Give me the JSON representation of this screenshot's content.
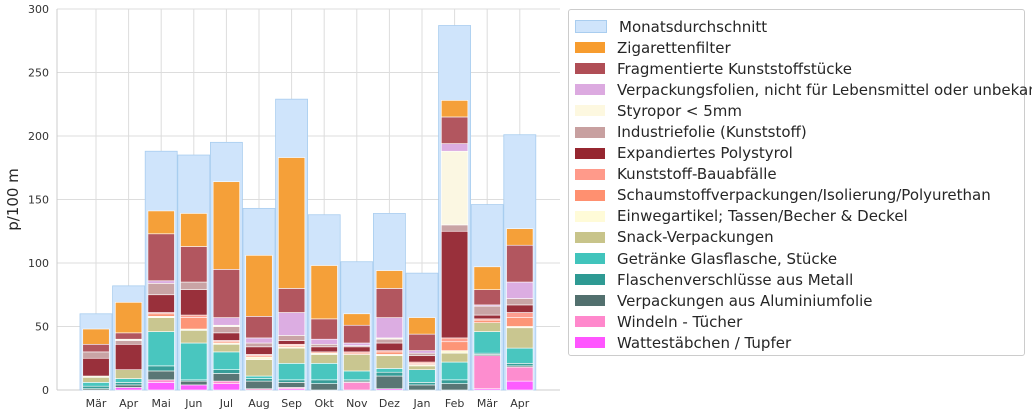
{
  "chart_data": {
    "type": "bar",
    "stacked": true,
    "ylabel": "p/100 m",
    "xlabel": "",
    "ylim": [
      0,
      300
    ],
    "yticks": [
      0,
      50,
      100,
      150,
      200,
      250,
      300
    ],
    "grid": true,
    "legend_position": "right",
    "categories": [
      "Mär",
      "Apr",
      "Mai",
      "Jun",
      "Jul",
      "Aug",
      "Sep",
      "Okt",
      "Nov",
      "Dez",
      "Jan",
      "Feb",
      "Mär",
      "Apr"
    ],
    "background_series": {
      "name": "Monatsdurchschnitt",
      "color": "#cfe4fb",
      "values": [
        60,
        82,
        188,
        185,
        195,
        143,
        229,
        138,
        101,
        139,
        92,
        287,
        146,
        201
      ]
    },
    "series": [
      {
        "name": "Wattestäbchen / Tupfer",
        "color": "#ff55ff",
        "values": [
          0,
          2,
          6,
          4,
          5,
          0,
          1,
          0,
          0,
          1,
          0,
          0,
          1,
          7
        ]
      },
      {
        "name": "Windeln - Tücher",
        "color": "#ff88cc",
        "values": [
          0,
          0,
          2,
          0,
          2,
          1,
          1,
          0,
          6,
          0,
          0,
          0,
          26,
          11
        ]
      },
      {
        "name": "Verpackungen aus Aluminiumfolie",
        "color": "#52706e",
        "values": [
          1,
          2,
          7,
          3,
          6,
          6,
          4,
          5,
          1,
          10,
          4,
          5,
          1,
          1
        ]
      },
      {
        "name": "Flaschenverschlüsse aus Metall",
        "color": "#2e9a93",
        "values": [
          2,
          2,
          4,
          1,
          3,
          2,
          2,
          3,
          1,
          3,
          2,
          3,
          1,
          2
        ]
      },
      {
        "name": "Getränke Glasflasche, Stücke",
        "color": "#41c4bc",
        "values": [
          3,
          3,
          27,
          29,
          14,
          2,
          13,
          13,
          7,
          3,
          10,
          14,
          17,
          12
        ]
      },
      {
        "name": "Snack-Verpackungen",
        "color": "#c8c48a",
        "values": [
          4,
          7,
          11,
          10,
          6,
          13,
          12,
          7,
          13,
          10,
          3,
          7,
          7,
          16
        ]
      },
      {
        "name": "Einwegartikel; Tassen/Becher & Deckel",
        "color": "#fffbd8",
        "values": [
          1,
          0,
          1,
          1,
          1,
          2,
          1,
          1,
          0,
          1,
          1,
          2,
          0,
          1
        ]
      },
      {
        "name": "Schaumstoffverpackungen/Isolierung/Polyurethan",
        "color": "#ff9070",
        "values": [
          0,
          0,
          2,
          9,
          1,
          1,
          1,
          1,
          1,
          2,
          1,
          7,
          2,
          7
        ]
      },
      {
        "name": "Kunststoff-Bauabfälle",
        "color": "#ff9a8a",
        "values": [
          0,
          0,
          1,
          2,
          1,
          1,
          1,
          0,
          1,
          1,
          1,
          3,
          1,
          4
        ]
      },
      {
        "name": "Expandiertes Polystyrol",
        "color": "#962630",
        "values": [
          14,
          20,
          14,
          20,
          6,
          6,
          3,
          4,
          4,
          6,
          5,
          84,
          3,
          6
        ]
      },
      {
        "name": "Industriefolie (Kunststoff)",
        "color": "#c8a0a0",
        "values": [
          5,
          3,
          9,
          6,
          5,
          3,
          4,
          2,
          1,
          3,
          2,
          5,
          7,
          5
        ]
      },
      {
        "name": "Styropor < 5mm",
        "color": "#fdf8e0",
        "values": [
          0,
          1,
          0,
          0,
          1,
          0,
          0,
          0,
          0,
          1,
          0,
          58,
          0,
          0
        ]
      },
      {
        "name": "Verpackungsfolien, nicht für Lebensmittel oder unbekannt",
        "color": "#dcaae0",
        "values": [
          0,
          0,
          2,
          0,
          6,
          4,
          18,
          4,
          2,
          16,
          2,
          6,
          1,
          13
        ]
      },
      {
        "name": "Fragmentierte Kunststoffstücke",
        "color": "#b04e56",
        "values": [
          6,
          5,
          37,
          28,
          38,
          17,
          19,
          16,
          14,
          23,
          13,
          21,
          12,
          29
        ]
      },
      {
        "name": "Zigarettenfilter",
        "color": "#f79c2e",
        "values": [
          12,
          24,
          18,
          26,
          69,
          48,
          103,
          42,
          9,
          14,
          13,
          13,
          18,
          13
        ]
      }
    ],
    "legend_order": [
      "Monatsdurchschnitt",
      "Zigarettenfilter",
      "Fragmentierte Kunststoffstücke",
      "Verpackungsfolien, nicht für Lebensmittel oder unbekannt",
      "Styropor < 5mm",
      "Industriefolie (Kunststoff)",
      "Expandiertes Polystyrol",
      "Kunststoff-Bauabfälle",
      "Schaumstoffverpackungen/Isolierung/Polyurethan",
      "Einwegartikel; Tassen/Becher & Deckel",
      "Snack-Verpackungen",
      "Getränke Glasflasche, Stücke",
      "Flaschenverschlüsse aus Metall",
      "Verpackungen aus Aluminiumfolie",
      "Windeln - Tücher",
      "Wattestäbchen / Tupfer"
    ]
  }
}
